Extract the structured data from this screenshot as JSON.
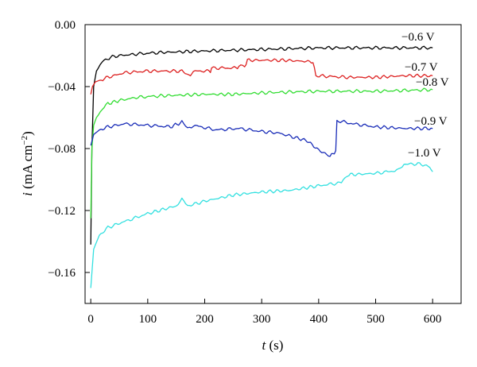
{
  "chart_data": {
    "type": "line",
    "title": "",
    "xlabel_var": "t",
    "xlabel_unit": " (s)",
    "ylabel_var": "i",
    "ylabel_unit_main": " (mA cm",
    "ylabel_unit_sup": "−2",
    "ylabel_unit_close": ")",
    "xlim": [
      -10,
      650
    ],
    "ylim": [
      -0.18,
      0.0
    ],
    "xticks": [
      0,
      100,
      200,
      300,
      400,
      500,
      600
    ],
    "xtick_labels": [
      "0",
      "100",
      "200",
      "300",
      "400",
      "500",
      "600"
    ],
    "yticks": [
      0.0,
      -0.04,
      -0.08,
      -0.12,
      -0.16
    ],
    "ytick_labels": [
      "0.00",
      "−0.04",
      "−0.08",
      "−0.12",
      "−0.16"
    ],
    "series": [
      {
        "name": "−0.6 V",
        "color": "#000000",
        "x": [
          0,
          2,
          5,
          10,
          20,
          35,
          50,
          80,
          120,
          200,
          300,
          400,
          500,
          600
        ],
        "y": [
          -0.142,
          -0.08,
          -0.04,
          -0.03,
          -0.024,
          -0.021,
          -0.02,
          -0.019,
          -0.018,
          -0.017,
          -0.016,
          -0.015,
          -0.015,
          -0.015
        ]
      },
      {
        "name": "−0.7 V",
        "color": "#dd2222",
        "x": [
          0,
          3,
          8,
          15,
          30,
          60,
          100,
          160,
          175,
          180,
          210,
          212,
          255,
          260,
          270,
          275,
          340,
          390,
          395,
          450,
          500,
          550,
          600
        ],
        "y": [
          -0.045,
          -0.04,
          -0.037,
          -0.036,
          -0.034,
          -0.031,
          -0.03,
          -0.03,
          -0.033,
          -0.03,
          -0.03,
          -0.028,
          -0.028,
          -0.027,
          -0.027,
          -0.023,
          -0.023,
          -0.024,
          -0.033,
          -0.034,
          -0.034,
          -0.033,
          -0.033
        ]
      },
      {
        "name": "−0.8 V",
        "color": "#33dd33",
        "x": [
          0,
          2,
          5,
          10,
          20,
          30,
          50,
          80,
          120,
          200,
          250,
          300,
          400,
          500,
          600
        ],
        "y": [
          -0.125,
          -0.08,
          -0.065,
          -0.06,
          -0.055,
          -0.051,
          -0.049,
          -0.047,
          -0.046,
          -0.045,
          -0.045,
          -0.044,
          -0.043,
          -0.043,
          -0.042
        ]
      },
      {
        "name": "−0.9 V",
        "color": "#1a2db8",
        "x": [
          0,
          5,
          15,
          30,
          60,
          100,
          140,
          160,
          170,
          180,
          220,
          260,
          300,
          330,
          360,
          380,
          400,
          420,
          425,
          430,
          432,
          460,
          500,
          550,
          600
        ],
        "y": [
          -0.078,
          -0.071,
          -0.068,
          -0.066,
          -0.064,
          -0.065,
          -0.066,
          -0.063,
          -0.067,
          -0.065,
          -0.068,
          -0.067,
          -0.069,
          -0.07,
          -0.073,
          -0.075,
          -0.081,
          -0.085,
          -0.083,
          -0.082,
          -0.062,
          -0.064,
          -0.066,
          -0.067,
          -0.067
        ]
      },
      {
        "name": "−1.0 V",
        "color": "#33e0e0",
        "x": [
          0,
          5,
          15,
          30,
          60,
          100,
          150,
          160,
          170,
          200,
          250,
          300,
          350,
          400,
          440,
          450,
          500,
          540,
          550,
          580,
          595,
          600
        ],
        "y": [
          -0.17,
          -0.145,
          -0.136,
          -0.131,
          -0.127,
          -0.122,
          -0.117,
          -0.113,
          -0.117,
          -0.114,
          -0.11,
          -0.108,
          -0.107,
          -0.104,
          -0.102,
          -0.097,
          -0.096,
          -0.094,
          -0.09,
          -0.09,
          -0.092,
          -0.095
        ]
      }
    ]
  }
}
